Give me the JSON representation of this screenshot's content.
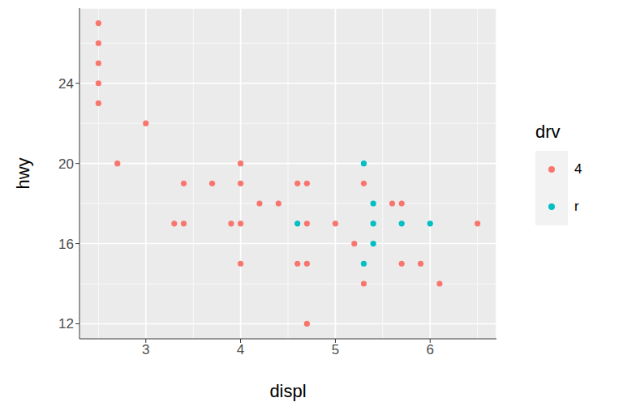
{
  "chart_data": {
    "type": "scatter",
    "x_label": "displ",
    "y_label": "hwy",
    "xlim": [
      2.3,
      6.7
    ],
    "xticks": [
      3,
      4,
      5,
      6
    ],
    "ylim": [
      11.25,
      27.75
    ],
    "yticks": [
      12,
      16,
      20,
      24
    ],
    "grid": true,
    "legend": "right",
    "legend_title": "drv",
    "series": [
      {
        "name": "4",
        "color": "#F8766D",
        "x": [
          2.5,
          2.5,
          2.5,
          2.5,
          2.5,
          3.0,
          2.7,
          3.3,
          3.4,
          3.4,
          3.7,
          3.9,
          4.0,
          4.0,
          4.0,
          4.0,
          4.2,
          4.4,
          4.6,
          4.6,
          4.7,
          4.7,
          4.7,
          4.7,
          5.0,
          5.2,
          5.3,
          5.3,
          5.6,
          5.7,
          5.7,
          5.9,
          6.1,
          6.5
        ],
        "values": [
          27,
          26,
          25,
          24,
          23,
          22,
          20,
          17,
          19,
          17,
          19,
          17,
          20,
          19,
          17,
          15,
          18,
          18,
          19,
          15,
          19,
          17,
          15,
          12,
          17,
          16,
          19,
          14,
          18,
          18,
          15,
          15,
          14,
          17
        ]
      },
      {
        "name": "r",
        "color": "#00BFC4",
        "x": [
          4.6,
          5.3,
          5.3,
          5.4,
          5.4,
          5.4,
          5.7,
          6.0
        ],
        "values": [
          17,
          20,
          15,
          18,
          17,
          16,
          17,
          17
        ]
      }
    ]
  }
}
